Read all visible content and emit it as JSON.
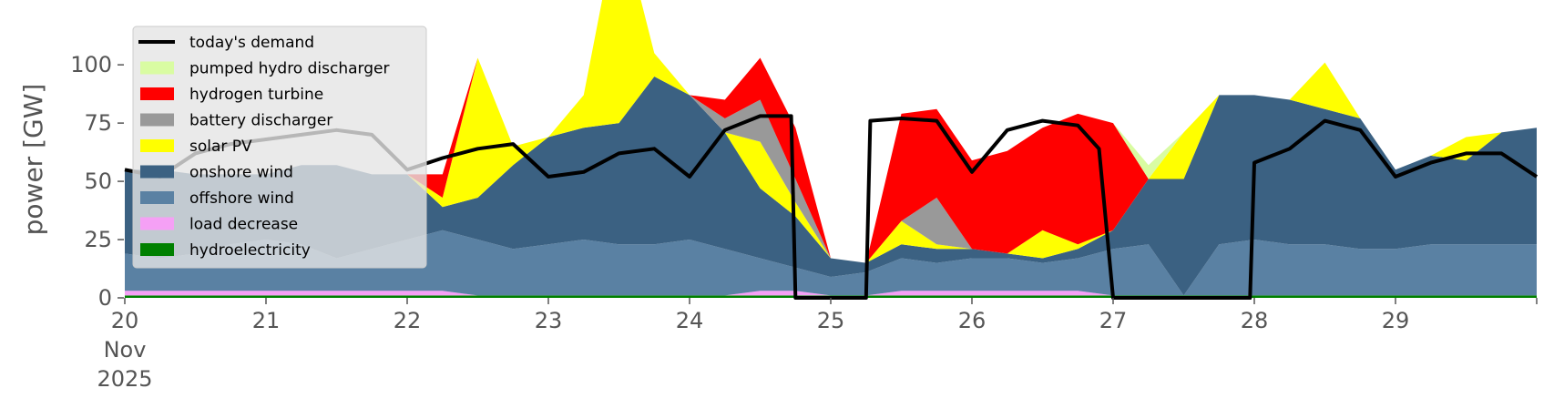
{
  "chart_data": {
    "type": "area",
    "ylabel": "power [GW]",
    "ylim": [
      0,
      120
    ],
    "yticks": [
      "0",
      "25",
      "50",
      "75",
      "100"
    ],
    "xlim": [
      0,
      10
    ],
    "xticks": [
      {
        "x": 0,
        "day": "20",
        "month": "Nov",
        "year": "2025"
      },
      {
        "x": 1,
        "day": "21"
      },
      {
        "x": 2,
        "day": "22"
      },
      {
        "x": 3,
        "day": "23"
      },
      {
        "x": 4,
        "day": "24"
      },
      {
        "x": 5,
        "day": "25"
      },
      {
        "x": 6,
        "day": "26"
      },
      {
        "x": 7,
        "day": "27"
      },
      {
        "x": 8,
        "day": "28"
      },
      {
        "x": 9,
        "day": "29"
      }
    ],
    "grid": false,
    "legend_position": "top-left",
    "x": [
      0,
      0.25,
      0.5,
      0.75,
      1,
      1.25,
      1.5,
      1.75,
      2,
      2.25,
      2.5,
      2.75,
      3,
      3.25,
      3.5,
      3.75,
      4,
      4.25,
      4.5,
      4.75,
      5,
      5.25,
      5.5,
      5.75,
      6,
      6.25,
      6.5,
      6.75,
      7,
      7.25,
      7.5,
      7.75,
      8,
      8.25,
      8.5,
      8.75,
      9,
      9.25,
      9.5,
      9.75,
      10
    ],
    "stack_order": [
      "hydroelectricity",
      "load decrease",
      "offshore wind",
      "onshore wind",
      "solar PV",
      "battery discharger",
      "hydrogen turbine",
      "pumped hydro discharger"
    ],
    "series": [
      {
        "name": "hydroelectricity",
        "color": "#008000",
        "values": [
          1,
          1,
          1,
          1,
          1,
          1,
          1,
          1,
          1,
          1,
          1,
          1,
          1,
          1,
          1,
          1,
          1,
          1,
          1,
          1,
          1,
          1,
          1,
          1,
          1,
          1,
          1,
          1,
          1,
          1,
          1,
          1,
          1,
          1,
          1,
          1,
          1,
          1,
          1,
          1,
          1
        ]
      },
      {
        "name": "load decrease",
        "color": "#f5a0f5",
        "values": [
          2,
          2,
          2,
          2,
          2,
          2,
          2,
          2,
          2,
          2,
          0,
          0,
          0,
          0,
          0,
          0,
          0,
          0,
          2,
          2,
          0,
          0,
          2,
          2,
          2,
          2,
          2,
          2,
          0,
          0,
          0,
          0,
          0,
          0,
          0,
          0,
          0,
          0,
          0,
          0,
          0
        ]
      },
      {
        "name": "offshore wind",
        "color": "#5a81a3",
        "values": [
          16,
          14,
          16,
          20,
          22,
          20,
          14,
          18,
          22,
          26,
          24,
          20,
          22,
          24,
          22,
          22,
          24,
          20,
          14,
          10,
          8,
          10,
          14,
          12,
          14,
          14,
          12,
          14,
          20,
          22,
          0,
          22,
          24,
          22,
          22,
          20,
          20,
          22,
          22,
          22,
          22
        ]
      },
      {
        "name": "onshore wind",
        "color": "#3b6182",
        "values": [
          36,
          38,
          34,
          30,
          28,
          34,
          40,
          32,
          28,
          10,
          18,
          36,
          46,
          48,
          52,
          72,
          62,
          50,
          30,
          22,
          8,
          4,
          6,
          6,
          4,
          2,
          2,
          4,
          8,
          28,
          50,
          64,
          62,
          62,
          58,
          56,
          34,
          38,
          36,
          48,
          50
        ]
      },
      {
        "name": "solar PV",
        "color": "#ffff00",
        "values": [
          0,
          0,
          0,
          0,
          0,
          0,
          0,
          0,
          0,
          4,
          60,
          8,
          0,
          14,
          90,
          10,
          0,
          0,
          20,
          6,
          0,
          0,
          10,
          2,
          0,
          0,
          12,
          2,
          0,
          0,
          20,
          0,
          0,
          0,
          20,
          0,
          0,
          0,
          10,
          0,
          0
        ]
      },
      {
        "name": "battery discharger",
        "color": "#999999",
        "values": [
          0,
          0,
          0,
          0,
          0,
          0,
          0,
          0,
          0,
          0,
          0,
          0,
          0,
          0,
          0,
          0,
          0,
          6,
          18,
          10,
          0,
          0,
          0,
          20,
          0,
          0,
          0,
          0,
          0,
          0,
          0,
          0,
          0,
          0,
          0,
          0,
          0,
          0,
          0,
          0,
          0
        ]
      },
      {
        "name": "hydrogen turbine",
        "color": "#ff0000",
        "values": [
          0,
          0,
          0,
          0,
          0,
          0,
          0,
          0,
          0,
          10,
          0,
          0,
          0,
          0,
          0,
          0,
          0,
          8,
          18,
          22,
          0,
          0,
          46,
          38,
          38,
          44,
          44,
          56,
          46,
          0,
          0,
          0,
          0,
          0,
          0,
          0,
          0,
          0,
          0,
          0,
          0
        ]
      },
      {
        "name": "pumped hydro discharger",
        "color": "#d9fca2",
        "values": [
          0,
          0,
          0,
          0,
          0,
          0,
          0,
          0,
          0,
          0,
          0,
          0,
          0,
          0,
          0,
          0,
          0,
          0,
          0,
          0,
          0,
          0,
          0,
          0,
          0,
          0,
          0,
          0,
          0,
          6,
          0,
          0,
          0,
          0,
          0,
          0,
          0,
          0,
          0,
          0,
          0
        ]
      }
    ],
    "demand": {
      "name": "today's demand",
      "color": "#000000",
      "points": [
        [
          0,
          55
        ],
        [
          0.25,
          52
        ],
        [
          0.5,
          62
        ],
        [
          0.75,
          66
        ],
        [
          1,
          68
        ],
        [
          1.25,
          70
        ],
        [
          1.5,
          72
        ],
        [
          1.75,
          70
        ],
        [
          2,
          55
        ],
        [
          2.25,
          60
        ],
        [
          2.5,
          64
        ],
        [
          2.75,
          66
        ],
        [
          3,
          52
        ],
        [
          3.25,
          54
        ],
        [
          3.5,
          62
        ],
        [
          3.75,
          64
        ],
        [
          4,
          52
        ],
        [
          4.25,
          72
        ],
        [
          4.5,
          78
        ],
        [
          4.72,
          78
        ],
        [
          4.75,
          0
        ],
        [
          5.25,
          0
        ],
        [
          5.28,
          76
        ],
        [
          5.5,
          77
        ],
        [
          5.75,
          76
        ],
        [
          6,
          54
        ],
        [
          6.25,
          72
        ],
        [
          6.5,
          76
        ],
        [
          6.75,
          74
        ],
        [
          6.9,
          64
        ],
        [
          7,
          0
        ],
        [
          7.97,
          0
        ],
        [
          8,
          58
        ],
        [
          8.25,
          64
        ],
        [
          8.5,
          76
        ],
        [
          8.75,
          72
        ],
        [
          9,
          52
        ],
        [
          9.25,
          58
        ],
        [
          9.5,
          62
        ],
        [
          9.75,
          62
        ],
        [
          10,
          52
        ]
      ]
    },
    "overlay_note": "legend box partially covers the plot; shaded region behind it",
    "legend_entries": [
      {
        "label": "today's demand",
        "color": "#000000",
        "kind": "line"
      },
      {
        "label": "pumped hydro discharger",
        "color": "#d9fca2",
        "kind": "patch"
      },
      {
        "label": "hydrogen turbine",
        "color": "#ff0000",
        "kind": "patch"
      },
      {
        "label": "battery discharger",
        "color": "#999999",
        "kind": "patch"
      },
      {
        "label": "solar PV",
        "color": "#ffff00",
        "kind": "patch"
      },
      {
        "label": "onshore wind",
        "color": "#3b6182",
        "kind": "patch"
      },
      {
        "label": "offshore wind",
        "color": "#5a81a3",
        "kind": "patch"
      },
      {
        "label": "load decrease",
        "color": "#f5a0f5",
        "kind": "patch"
      },
      {
        "label": "hydroelectricity",
        "color": "#008000",
        "kind": "patch"
      }
    ]
  }
}
